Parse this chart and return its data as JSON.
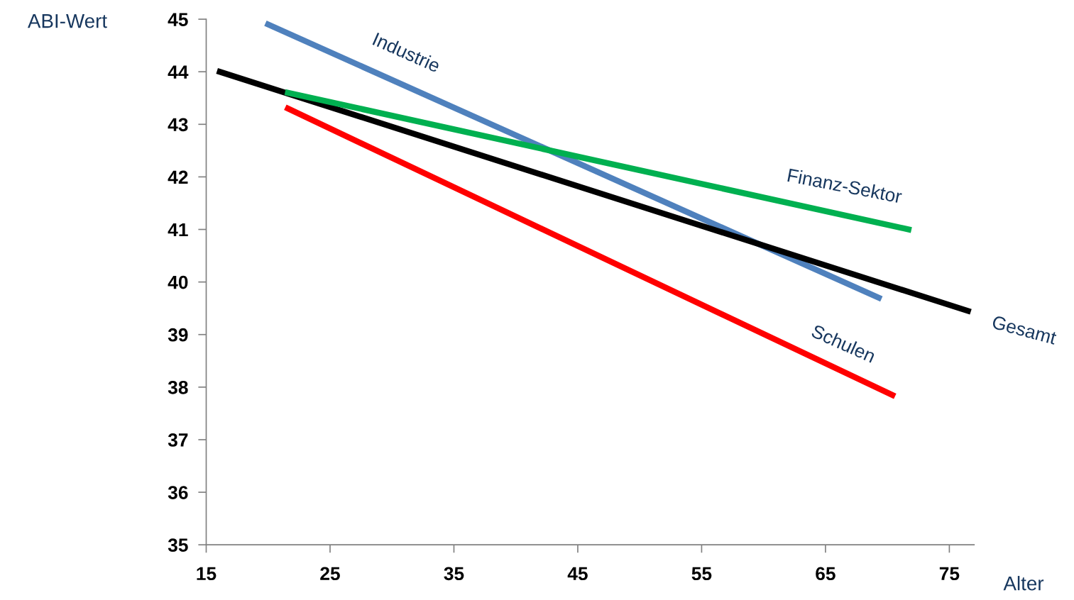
{
  "chart_data": {
    "type": "line",
    "xlabel": "Alter",
    "ylabel": "ABI-Wert",
    "xlim": [
      15,
      77
    ],
    "xticks": [
      15,
      25,
      35,
      45,
      55,
      65,
      75
    ],
    "ylim": [
      35,
      45
    ],
    "yticks": [
      35,
      36,
      37,
      38,
      39,
      40,
      41,
      42,
      43,
      44,
      45
    ],
    "grid": false,
    "legend": false,
    "marker": "none",
    "line_style": "solid",
    "series": [
      {
        "name": "Industrie",
        "color": "#4f81bd",
        "x": [
          20,
          69.3
        ],
        "values": [
          44.9,
          39.7
        ]
      },
      {
        "name": "Gesamt",
        "color": "#000000",
        "x": [
          16.1,
          76.5
        ],
        "values": [
          44.0,
          39.45
        ]
      },
      {
        "name": "Finanz-Sektor",
        "color": "#00b050",
        "x": [
          21.6,
          71.7
        ],
        "values": [
          43.6,
          41.0
        ]
      },
      {
        "name": "Schulen",
        "color": "#ff0000",
        "x": [
          21.6,
          70.4
        ],
        "values": [
          43.3,
          37.85
        ]
      }
    ]
  }
}
